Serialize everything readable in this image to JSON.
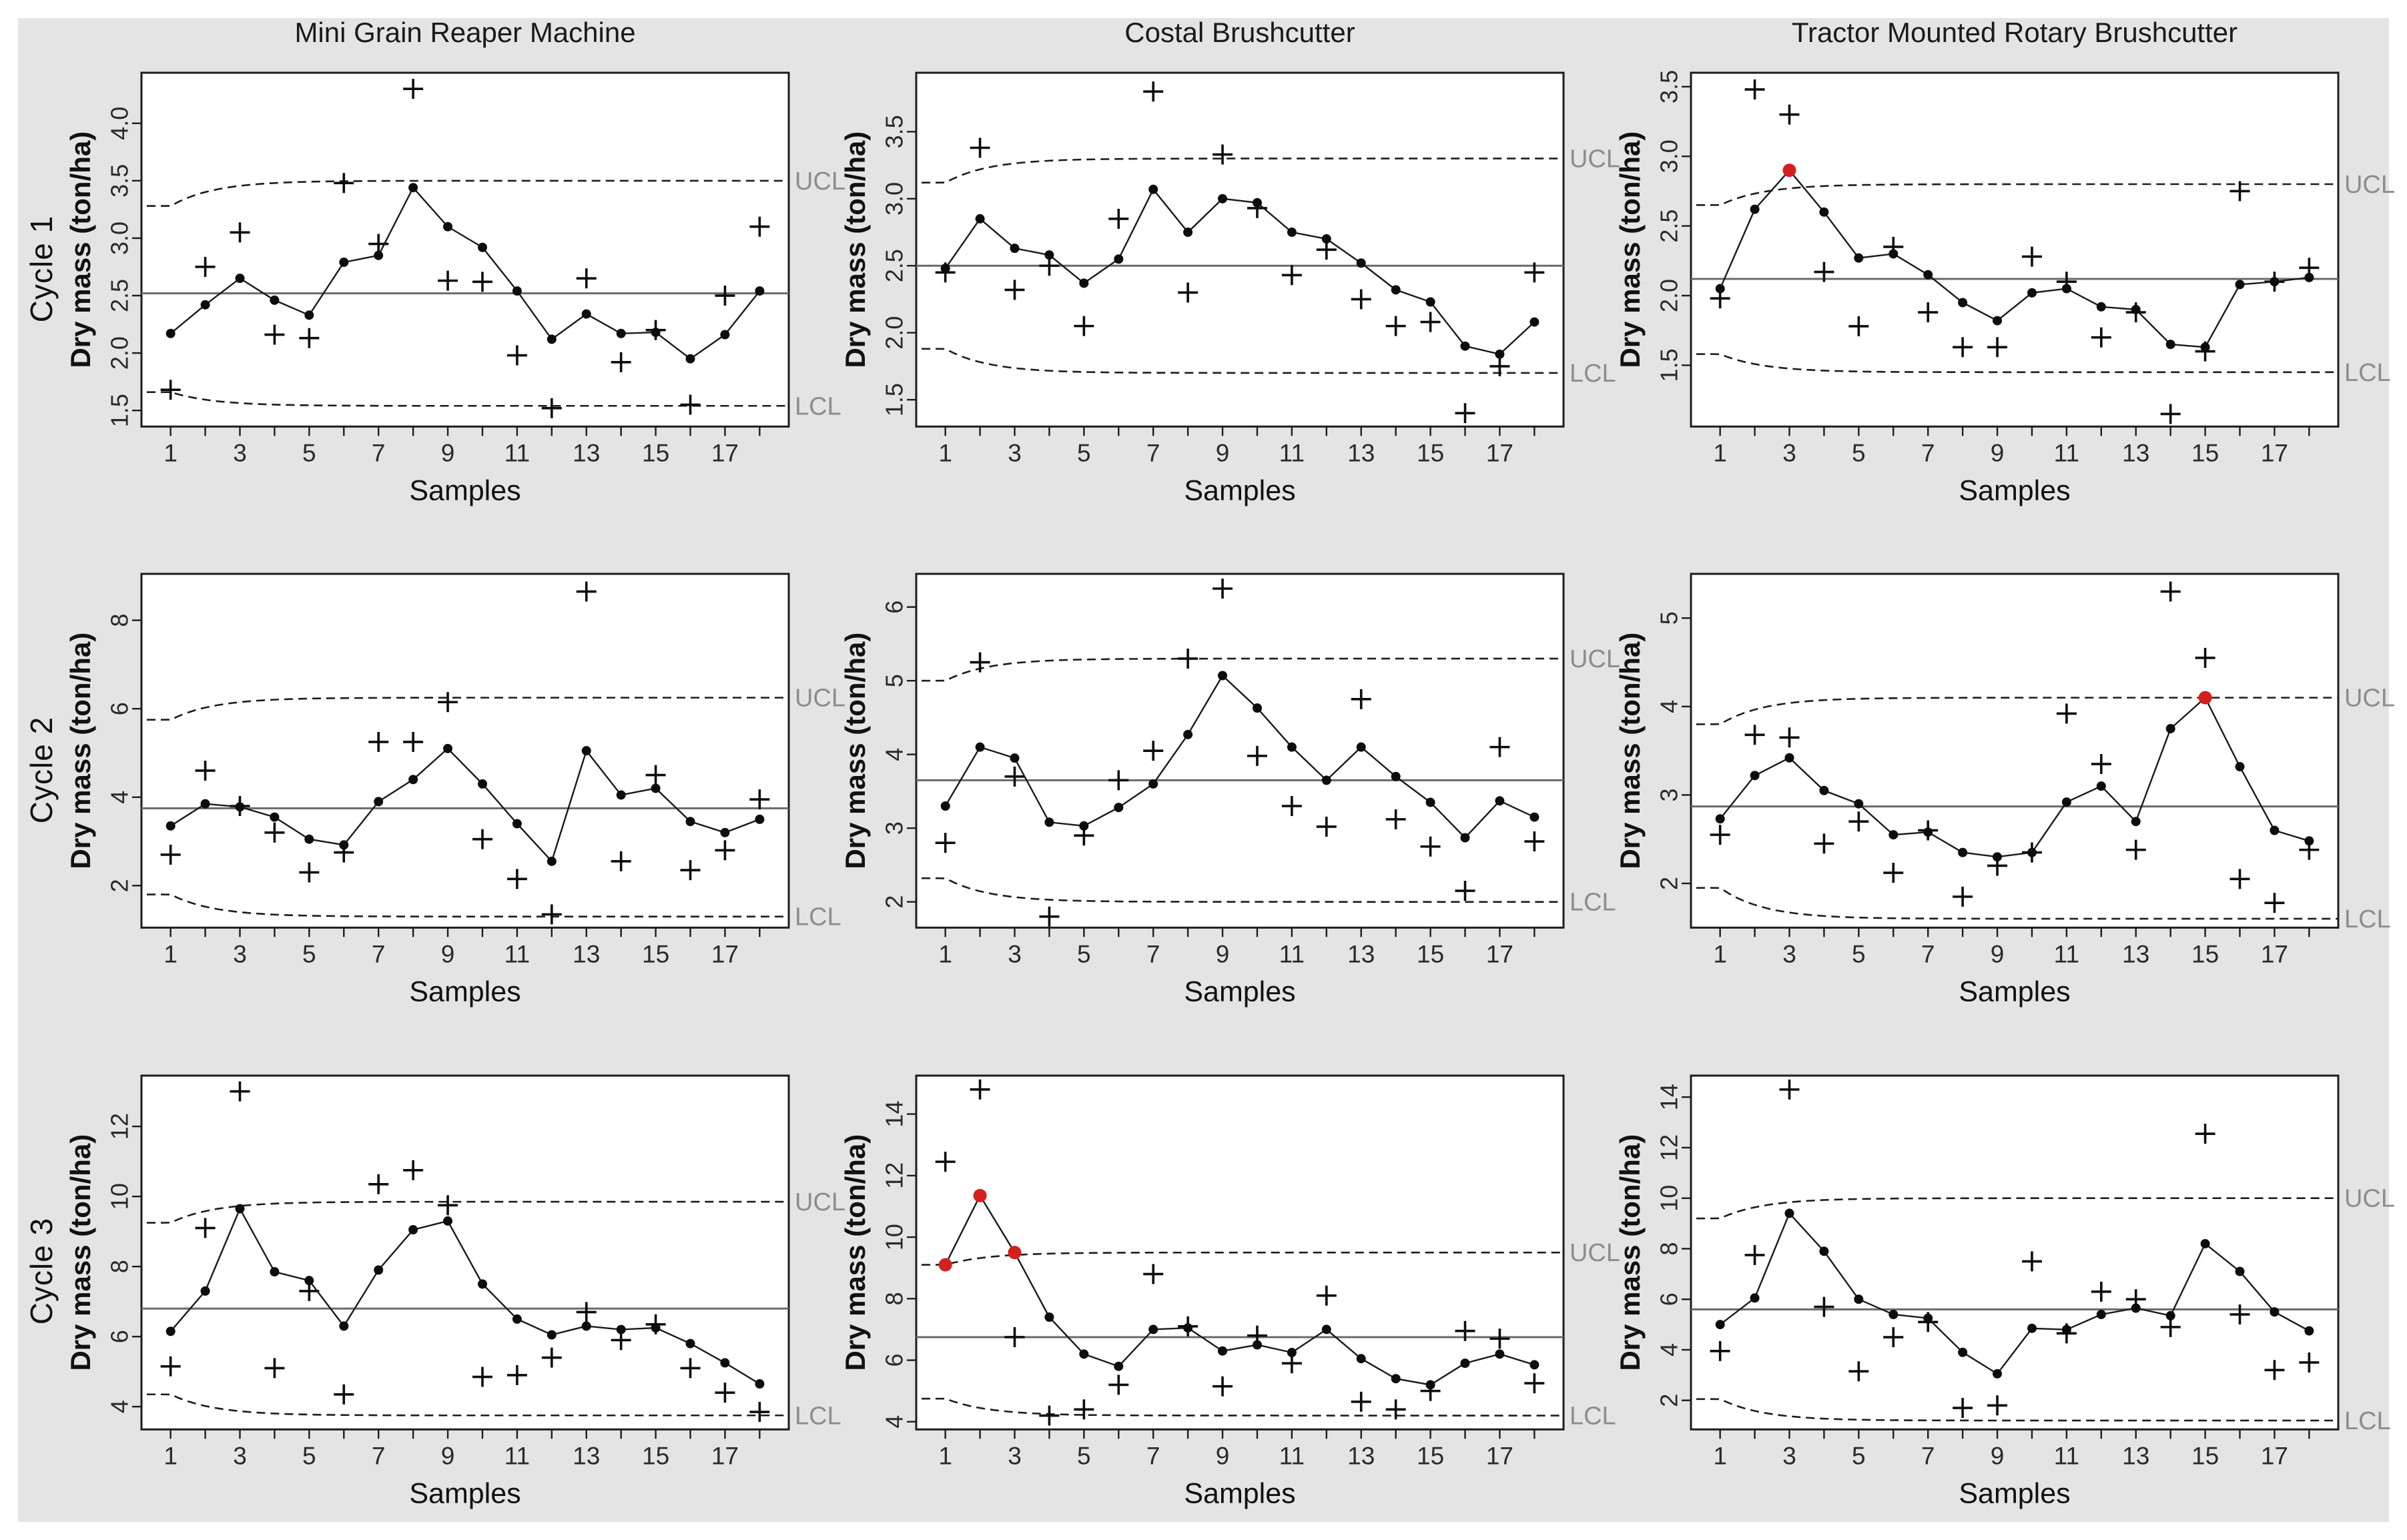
{
  "colors": {
    "figure_background": "#e4e4e4",
    "page_background": "#ffffff",
    "plot_background": "#ffffff",
    "plot_border": "#1c1c1c",
    "series_line": "#1a1a1a",
    "point_fill": "#0d0d0d",
    "red_point_fill": "#d41f1f",
    "center_line": "#6a6a6a",
    "limit_line": "#1c1c1c",
    "limit_label_text": "#8d8d8d",
    "tick_text": "#2a2a2a",
    "title_text": "#1a1a1a"
  },
  "rows": [
    {
      "label": "Cycle 1"
    },
    {
      "label": "Cycle 2"
    },
    {
      "label": "Cycle 3"
    }
  ],
  "chart_data": [
    {
      "type": "line",
      "cycle": "Cycle 1",
      "machine": "Mini Grain Reaper Machine",
      "title": "Mini Grain Reaper Machine",
      "xlabel": "Samples",
      "ylabel": "Dry mass (ton/ha)",
      "ucl_label": "UCL",
      "lcl_label": "LCL",
      "n_samples": 18,
      "xtick_labels": [
        "1",
        "3",
        "5",
        "7",
        "9",
        "11",
        "13",
        "15",
        "17"
      ],
      "ylim": [
        1.36,
        4.44
      ],
      "ytick_values": [
        1.5,
        2.0,
        2.5,
        3.0,
        3.5,
        4.0
      ],
      "ytick_labels": [
        "1.5",
        "2.0",
        "2.5",
        "3.0",
        "3.5",
        "4.0"
      ],
      "center": 2.52,
      "ucl": 3.5,
      "ucl_start": 3.28,
      "lcl": 1.54,
      "lcl_start": 1.66,
      "series": [
        2.17,
        2.42,
        2.65,
        2.46,
        2.33,
        2.79,
        2.85,
        3.44,
        3.1,
        2.92,
        2.54,
        2.12,
        2.34,
        2.17,
        2.18,
        1.95,
        2.16,
        2.54
      ],
      "plus_markers": [
        1.68,
        2.75,
        3.05,
        2.16,
        2.13,
        3.48,
        2.95,
        4.3,
        2.63,
        2.62,
        1.98,
        1.52,
        2.65,
        1.92,
        2.2,
        1.55,
        2.5,
        3.1
      ],
      "red_samples": []
    },
    {
      "type": "line",
      "cycle": "Cycle 1",
      "machine": "Costal Brushcutter",
      "title": "Costal Brushcutter",
      "xlabel": "Samples",
      "ylabel": "Dry mass (ton/ha)",
      "ucl_label": "UCL",
      "lcl_label": "LCL",
      "n_samples": 18,
      "xtick_labels": [
        "1",
        "3",
        "5",
        "7",
        "9",
        "11",
        "13",
        "15",
        "17"
      ],
      "ylim": [
        1.3,
        3.94
      ],
      "ytick_values": [
        1.5,
        2.0,
        2.5,
        3.0,
        3.5
      ],
      "ytick_labels": [
        "1.5",
        "2.0",
        "2.5",
        "3.0",
        "3.5"
      ],
      "center": 2.5,
      "ucl": 3.3,
      "ucl_start": 3.12,
      "lcl": 1.7,
      "lcl_start": 1.88,
      "series": [
        2.48,
        2.85,
        2.63,
        2.58,
        2.37,
        2.55,
        3.07,
        2.75,
        3.0,
        2.97,
        2.75,
        2.7,
        2.52,
        2.32,
        2.23,
        1.9,
        1.84,
        2.08
      ],
      "plus_markers": [
        2.45,
        3.38,
        2.32,
        2.5,
        2.05,
        2.85,
        3.8,
        2.3,
        3.33,
        2.93,
        2.43,
        2.62,
        2.25,
        2.05,
        2.08,
        1.4,
        1.75,
        2.45
      ],
      "red_samples": []
    },
    {
      "type": "line",
      "cycle": "Cycle 1",
      "machine": "Tractor Mounted Rotary Brushcutter",
      "title": "Tractor Mounted Rotary Brushcutter",
      "xlabel": "Samples",
      "ylabel": "Dry mass (ton/ha)",
      "ucl_label": "UCL",
      "lcl_label": "LCL",
      "n_samples": 18,
      "xtick_labels": [
        "1",
        "3",
        "5",
        "7",
        "9",
        "11",
        "13",
        "15",
        "17"
      ],
      "ylim": [
        1.06,
        3.6
      ],
      "ytick_values": [
        1.5,
        2.0,
        2.5,
        3.0,
        3.5
      ],
      "ytick_labels": [
        "1.5",
        "2.0",
        "2.5",
        "3.0",
        "3.5"
      ],
      "center": 2.12,
      "ucl": 2.8,
      "ucl_start": 2.65,
      "lcl": 1.45,
      "lcl_start": 1.58,
      "series": [
        2.05,
        2.62,
        2.9,
        2.6,
        2.27,
        2.3,
        2.15,
        1.95,
        1.82,
        2.02,
        2.05,
        1.92,
        1.9,
        1.65,
        1.63,
        2.08,
        2.1,
        2.13
      ],
      "plus_markers": [
        1.98,
        3.48,
        3.3,
        2.17,
        1.78,
        2.35,
        1.88,
        1.63,
        1.63,
        2.28,
        2.1,
        1.7,
        1.88,
        1.15,
        1.6,
        2.75,
        2.1,
        2.2
      ],
      "red_samples": [
        3
      ]
    },
    {
      "type": "line",
      "cycle": "Cycle 2",
      "machine": "Mini Grain Reaper Machine",
      "title": "",
      "xlabel": "Samples",
      "ylabel": "Dry mass (ton/ha)",
      "ucl_label": "UCL",
      "lcl_label": "LCL",
      "n_samples": 18,
      "xtick_labels": [
        "1",
        "3",
        "5",
        "7",
        "9",
        "11",
        "13",
        "15",
        "17"
      ],
      "ylim": [
        1.05,
        9.05
      ],
      "ytick_values": [
        2,
        4,
        6,
        8
      ],
      "ytick_labels": [
        "2",
        "4",
        "6",
        "8"
      ],
      "center": 3.75,
      "ucl": 6.25,
      "ucl_start": 5.75,
      "lcl": 1.3,
      "lcl_start": 1.8,
      "series": [
        3.35,
        3.85,
        3.78,
        3.55,
        3.05,
        2.92,
        3.9,
        4.4,
        5.1,
        4.3,
        3.4,
        2.55,
        5.05,
        4.05,
        4.2,
        3.45,
        3.2,
        3.5
      ],
      "plus_markers": [
        2.7,
        4.6,
        3.8,
        3.2,
        2.3,
        2.75,
        5.25,
        5.25,
        6.15,
        3.05,
        2.15,
        1.35,
        8.65,
        2.55,
        4.5,
        2.35,
        2.8,
        3.95
      ],
      "red_samples": []
    },
    {
      "type": "line",
      "cycle": "Cycle 2",
      "machine": "Costal Brushcutter",
      "title": "",
      "xlabel": "Samples",
      "ylabel": "Dry mass (ton/ha)",
      "ucl_label": "UCL",
      "lcl_label": "LCL",
      "n_samples": 18,
      "xtick_labels": [
        "1",
        "3",
        "5",
        "7",
        "9",
        "11",
        "13",
        "15",
        "17"
      ],
      "ylim": [
        1.65,
        6.45
      ],
      "ytick_values": [
        2,
        3,
        4,
        5,
        6
      ],
      "ytick_labels": [
        "2",
        "3",
        "4",
        "5",
        "6"
      ],
      "center": 3.65,
      "ucl": 5.3,
      "ucl_start": 5.0,
      "lcl": 2.0,
      "lcl_start": 2.32,
      "series": [
        3.3,
        4.1,
        3.95,
        3.08,
        3.03,
        3.28,
        3.6,
        4.27,
        5.07,
        4.63,
        4.1,
        3.65,
        4.1,
        3.7,
        3.35,
        2.87,
        3.37,
        3.15
      ],
      "plus_markers": [
        2.8,
        5.25,
        3.7,
        1.8,
        2.9,
        3.65,
        4.05,
        5.3,
        6.25,
        3.98,
        3.3,
        3.02,
        4.75,
        3.12,
        2.75,
        2.15,
        4.1,
        2.82
      ],
      "red_samples": []
    },
    {
      "type": "line",
      "cycle": "Cycle 2",
      "machine": "Tractor Mounted Rotary Brushcutter",
      "title": "",
      "xlabel": "Samples",
      "ylabel": "Dry mass (ton/ha)",
      "ucl_label": "UCL",
      "lcl_label": "LCL",
      "n_samples": 18,
      "xtick_labels": [
        "1",
        "3",
        "5",
        "7",
        "9",
        "11",
        "13",
        "15",
        "17"
      ],
      "ylim": [
        1.5,
        5.5
      ],
      "ytick_values": [
        2,
        3,
        4,
        5
      ],
      "ytick_labels": [
        "2",
        "3",
        "4",
        "5"
      ],
      "center": 2.87,
      "ucl": 4.1,
      "ucl_start": 3.8,
      "lcl": 1.6,
      "lcl_start": 1.95,
      "series": [
        2.73,
        3.22,
        3.42,
        3.05,
        2.9,
        2.55,
        2.58,
        2.35,
        2.3,
        2.35,
        2.92,
        3.1,
        2.7,
        3.75,
        4.1,
        3.32,
        2.6,
        2.48
      ],
      "plus_markers": [
        2.55,
        3.68,
        3.65,
        2.45,
        2.7,
        2.12,
        2.6,
        1.85,
        2.2,
        2.35,
        3.92,
        3.35,
        2.38,
        5.3,
        4.55,
        2.05,
        1.78,
        2.38
      ],
      "red_samples": [
        15
      ]
    },
    {
      "type": "line",
      "cycle": "Cycle 3",
      "machine": "Mini Grain Reaper Machine",
      "title": "",
      "xlabel": "Samples",
      "ylabel": "Dry mass (ton/ha)",
      "ucl_label": "UCL",
      "lcl_label": "LCL",
      "n_samples": 18,
      "xtick_labels": [
        "1",
        "3",
        "5",
        "7",
        "9",
        "11",
        "13",
        "15",
        "17"
      ],
      "ylim": [
        3.35,
        13.45
      ],
      "ytick_values": [
        4,
        6,
        8,
        10,
        12
      ],
      "ytick_labels": [
        "4",
        "6",
        "8",
        "10",
        "12"
      ],
      "center": 6.8,
      "ucl": 9.85,
      "ucl_start": 9.25,
      "lcl": 3.75,
      "lcl_start": 4.35,
      "series": [
        6.15,
        7.3,
        9.65,
        7.85,
        7.6,
        6.3,
        7.9,
        9.05,
        9.3,
        7.5,
        6.5,
        6.05,
        6.3,
        6.2,
        6.25,
        5.8,
        5.25,
        4.65
      ],
      "plus_markers": [
        5.15,
        9.1,
        13.0,
        5.1,
        7.3,
        4.35,
        10.35,
        10.75,
        9.75,
        4.85,
        4.9,
        5.4,
        6.7,
        5.9,
        6.35,
        5.1,
        4.4,
        3.85
      ],
      "red_samples": []
    },
    {
      "type": "line",
      "cycle": "Cycle 3",
      "machine": "Costal Brushcutter",
      "title": "",
      "xlabel": "Samples",
      "ylabel": "Dry mass (ton/ha)",
      "ucl_label": "UCL",
      "lcl_label": "LCL",
      "n_samples": 18,
      "xtick_labels": [
        "1",
        "3",
        "5",
        "7",
        "9",
        "11",
        "13",
        "15",
        "17"
      ],
      "ylim": [
        3.75,
        15.25
      ],
      "ytick_values": [
        4,
        6,
        8,
        10,
        12,
        14
      ],
      "ytick_labels": [
        "4",
        "6",
        "8",
        "10",
        "12",
        "14"
      ],
      "center": 6.75,
      "ucl": 9.5,
      "ucl_start": 9.1,
      "lcl": 4.2,
      "lcl_start": 4.75,
      "series": [
        9.1,
        11.35,
        9.5,
        7.4,
        6.2,
        5.8,
        7.0,
        7.05,
        6.3,
        6.5,
        6.25,
        7.0,
        6.05,
        5.4,
        5.2,
        5.9,
        6.2,
        5.85
      ],
      "plus_markers": [
        12.45,
        14.8,
        6.75,
        4.2,
        4.4,
        5.2,
        8.8,
        7.1,
        5.15,
        6.8,
        5.9,
        8.1,
        4.65,
        4.4,
        5.0,
        6.95,
        6.7,
        5.25
      ],
      "red_samples": [
        1,
        2,
        3
      ]
    },
    {
      "type": "line",
      "cycle": "Cycle 3",
      "machine": "Tractor Mounted Rotary Brushcutter",
      "title": "",
      "xlabel": "Samples",
      "ylabel": "Dry mass (ton/ha)",
      "ucl_label": "UCL",
      "lcl_label": "LCL",
      "n_samples": 18,
      "xtick_labels": [
        "1",
        "3",
        "5",
        "7",
        "9",
        "11",
        "13",
        "15",
        "17"
      ],
      "ylim": [
        0.85,
        14.85
      ],
      "ytick_values": [
        2,
        4,
        6,
        8,
        10,
        12,
        14
      ],
      "ytick_labels": [
        "2",
        "4",
        "6",
        "8",
        "10",
        "12",
        "14"
      ],
      "center": 5.6,
      "ucl": 10.0,
      "ucl_start": 9.2,
      "lcl": 1.2,
      "lcl_start": 2.05,
      "series": [
        5.0,
        6.05,
        9.4,
        7.9,
        6.0,
        5.4,
        5.25,
        3.9,
        3.05,
        4.85,
        4.8,
        5.4,
        5.65,
        5.35,
        8.2,
        7.1,
        5.5,
        4.75
      ],
      "plus_markers": [
        3.95,
        7.75,
        14.3,
        5.7,
        3.15,
        4.5,
        5.1,
        1.7,
        1.8,
        7.5,
        4.65,
        6.3,
        6.0,
        4.9,
        12.55,
        5.4,
        3.2,
        3.5
      ],
      "red_samples": []
    }
  ]
}
